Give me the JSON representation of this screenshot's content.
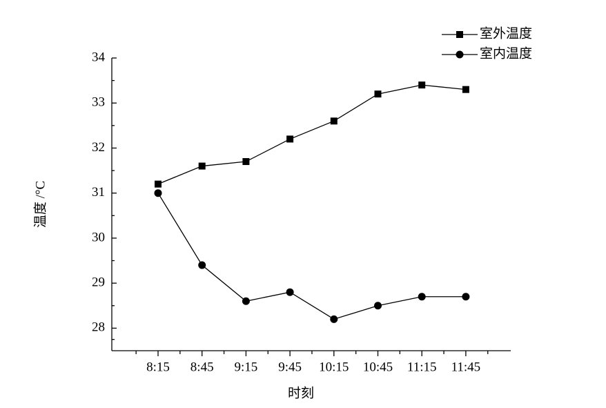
{
  "chart_data": {
    "type": "line",
    "x_label": "时刻",
    "y_label": "温度 /°C",
    "categories": [
      "8:15",
      "8:45",
      "9:15",
      "9:45",
      "10:15",
      "10:45",
      "11:15",
      "11:45"
    ],
    "series": [
      {
        "name": "室外温度",
        "color": "#000000",
        "marker": "square",
        "values": [
          31.2,
          31.6,
          31.7,
          32.2,
          32.6,
          33.2,
          33.4,
          33.3
        ]
      },
      {
        "name": "室内温度",
        "color": "#000000",
        "marker": "circle",
        "values": [
          31.0,
          29.4,
          28.6,
          28.8,
          28.2,
          28.5,
          28.7,
          28.7
        ]
      }
    ],
    "ylim": [
      27.5,
      34
    ],
    "yticks": [
      28,
      29,
      30,
      31,
      32,
      33,
      34
    ],
    "grid": false,
    "legend": "top-right"
  }
}
